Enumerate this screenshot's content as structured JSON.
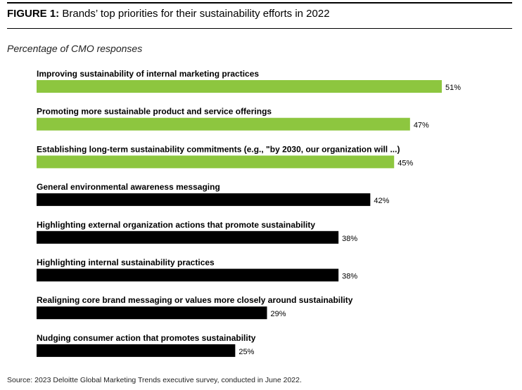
{
  "figure": {
    "label": "FIGURE 1:",
    "title": "Brands’ top priorities for their sustainability efforts in 2022"
  },
  "subtitle": "Percentage of CMO responses",
  "source": "Source: 2023 Deloitte Global Marketing Trends executive survey, conducted in June 2022.",
  "colors": {
    "highlight": "#8dc63f",
    "default": "#000000"
  },
  "chart_data": {
    "type": "bar",
    "orientation": "horizontal",
    "unit": "%",
    "xlim": [
      0,
      51
    ],
    "grid": false,
    "categories": [
      "Improving sustainability of internal marketing practices",
      "Promoting more sustainable product and service offerings",
      "Establishing long-term sustainability commitments (e.g., \"by 2030, our organization will ...)",
      "General environmental awareness messaging",
      "Highlighting external organization actions that promote sustainability",
      "Highlighting internal sustainability practices",
      "Realigning core brand messaging or values more closely around sustainability",
      "Nudging consumer action that promotes sustainability"
    ],
    "values": [
      51,
      47,
      45,
      42,
      38,
      38,
      29,
      25
    ],
    "value_labels": [
      "51%",
      "47%",
      "45%",
      "42%",
      "38%",
      "38%",
      "29%",
      "25%"
    ],
    "highlighted": [
      true,
      true,
      true,
      false,
      false,
      false,
      false,
      false
    ]
  }
}
